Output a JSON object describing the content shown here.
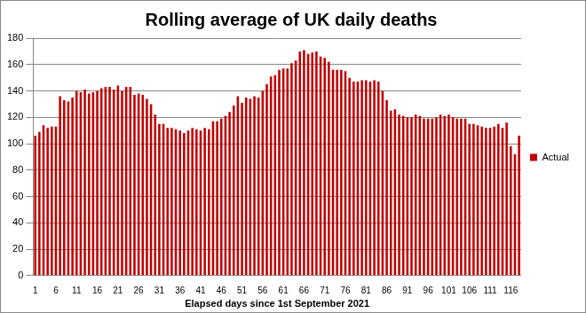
{
  "chart_data": {
    "type": "bar",
    "title": "Rolling average of UK daily deaths",
    "x_label": "Elapsed days since 1st September 2021",
    "categories": [
      "1",
      null,
      null,
      null,
      null,
      "6",
      null,
      null,
      null,
      null,
      "11",
      null,
      null,
      null,
      null,
      "16",
      null,
      null,
      null,
      null,
      "21",
      null,
      null,
      null,
      null,
      "26",
      null,
      null,
      null,
      null,
      "31",
      null,
      null,
      null,
      null,
      "36",
      null,
      null,
      null,
      null,
      "41",
      null,
      null,
      null,
      null,
      "46",
      null,
      null,
      null,
      null,
      "51",
      null,
      null,
      null,
      null,
      "56",
      null,
      null,
      null,
      null,
      "61",
      null,
      null,
      null,
      null,
      "66",
      null,
      null,
      null,
      null,
      "71",
      null,
      null,
      null,
      null,
      "76",
      null,
      null,
      null,
      null,
      "81",
      null,
      null,
      null,
      null,
      "86",
      null,
      null,
      null,
      null,
      "91",
      null,
      null,
      null,
      null,
      "96",
      null,
      null,
      null,
      null,
      "101",
      null,
      null,
      null,
      null,
      "106",
      null,
      null,
      null,
      null,
      "111",
      null,
      null,
      null,
      null,
      "116",
      null,
      null
    ],
    "series": [
      {
        "name": "Actual",
        "color": "#c00000",
        "values": [
          106,
          109,
          114,
          112,
          113,
          113,
          136,
          133,
          132,
          135,
          140,
          139,
          141,
          138,
          139,
          140,
          142,
          143,
          143,
          141,
          144,
          140,
          143,
          143,
          137,
          138,
          137,
          134,
          130,
          122,
          115,
          115,
          112,
          112,
          111,
          110,
          108,
          110,
          112,
          111,
          110,
          112,
          111,
          117,
          117,
          119,
          121,
          124,
          129,
          136,
          131,
          135,
          134,
          136,
          135,
          140,
          145,
          151,
          152,
          156,
          157,
          157,
          161,
          163,
          170,
          171,
          168,
          169,
          170,
          166,
          165,
          162,
          156,
          156,
          156,
          155,
          150,
          147,
          147,
          148,
          148,
          147,
          148,
          147,
          140,
          133,
          125,
          126,
          122,
          121,
          120,
          120,
          122,
          121,
          119,
          119,
          119,
          120,
          122,
          121,
          122,
          120,
          119,
          119,
          119,
          115,
          115,
          114,
          113,
          112,
          112,
          113,
          115,
          112,
          116,
          98,
          92,
          106
        ]
      }
    ],
    "ylim": [
      0,
      180
    ],
    "yticks": [
      0,
      20,
      40,
      60,
      80,
      100,
      120,
      140,
      160,
      180
    ],
    "grid": true,
    "legend": "right"
  }
}
